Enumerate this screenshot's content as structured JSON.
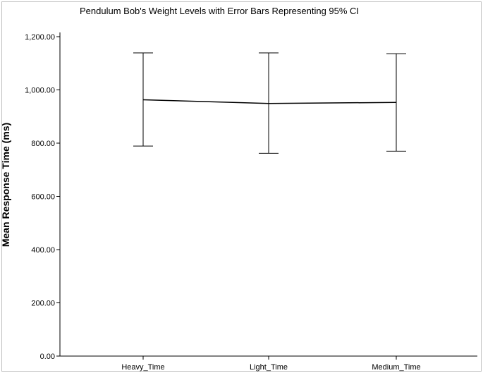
{
  "chart_data": {
    "type": "line",
    "title": "Pendulum Bob's Weight Levels with Error Bars Representing 95% CI",
    "xlabel": "",
    "ylabel": "Mean Response Time (ms)",
    "categories": [
      "Heavy_Time",
      "Light_Time",
      "Medium_Time"
    ],
    "series": [
      {
        "values": [
          963,
          949,
          953
        ],
        "ci_lower": [
          789,
          762,
          770
        ],
        "ci_upper": [
          1139,
          1139,
          1136
        ]
      }
    ],
    "ylim": [
      0,
      1200
    ],
    "yticks": [
      0,
      200,
      400,
      600,
      800,
      1000,
      1200
    ],
    "ytick_labels": [
      "0.00",
      "200.00",
      "400.00",
      "600.00",
      "800.00",
      "1,000.00",
      "1,200.00"
    ],
    "grid": false,
    "colors": {
      "line": "#000000",
      "frame": "#bfbfbf"
    }
  }
}
